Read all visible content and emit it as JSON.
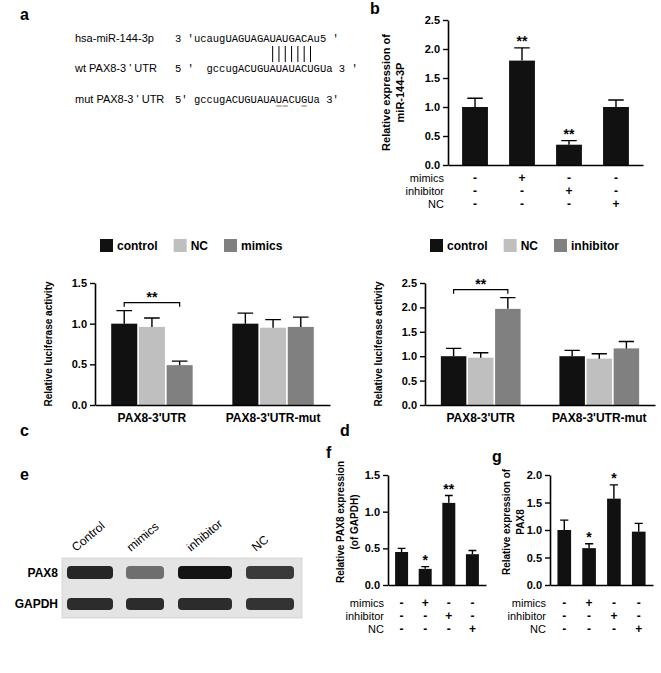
{
  "alignment": {
    "panel": "a",
    "rows": [
      {
        "name": "hsa-miR-144-3p",
        "sequence": "3 'ucaugUAGUAGAUAUGACAu5 '"
      },
      {
        "name": "wt PAX8-3 ' UTR",
        "sequence": "5 '  gccugACUGUAUAUACUGUa 3 '"
      },
      {
        "name": "mut PAX8-3 ' UTR",
        "sequence": "5' gccugACUGUAUAUACUGUa 3'"
      }
    ]
  },
  "blot": {
    "panel": "e",
    "lanes": [
      "Control",
      "mimics",
      "inhibitor",
      "NC"
    ],
    "rows": [
      "PAX8",
      "GAPDH"
    ]
  },
  "chart_data": [
    {
      "panel": "b",
      "type": "bar",
      "categories": [
        null,
        null,
        null,
        null
      ],
      "values": [
        1,
        1.8,
        0.35,
        1
      ],
      "errors": [
        0.15,
        0.22,
        0.07,
        0.12
      ],
      "color": "#111111",
      "ylabel": [
        "Relative expression of",
        "miR-144-3P"
      ],
      "ylim": [
        0,
        2.5
      ],
      "yticks": [
        {
          "value": 0,
          "label": "0.0"
        },
        0.5,
        {
          "value": 1,
          "label": "1.0"
        },
        1.5,
        {
          "value": 2,
          "label": "2.0"
        },
        2.5
      ],
      "annotations": [
        {
          "index": 1,
          "text": "**"
        },
        {
          "index": 2,
          "text": "**"
        }
      ],
      "conditions": [
        {
          "name": "mimics",
          "signs": [
            "-",
            "+",
            "-",
            "-"
          ]
        },
        {
          "name": "inhibitor",
          "signs": [
            "-",
            "-",
            "+",
            "-"
          ]
        },
        {
          "name": "NC",
          "signs": [
            "-",
            "-",
            "-",
            "+"
          ]
        }
      ]
    },
    {
      "panel": "c",
      "type": "bar",
      "categories": [
        "PAX8-3'UTR",
        "PAX8-3'UTR-mut"
      ],
      "series": [
        {
          "name": "control",
          "color": "#111111",
          "values": [
            1,
            1
          ],
          "errors": [
            0.16,
            0.13
          ]
        },
        {
          "name": "NC",
          "color": "#bfbfbf",
          "values": [
            0.96,
            0.95
          ],
          "errors": [
            0.11,
            0.1
          ]
        },
        {
          "name": "mimics",
          "color": "#808080",
          "values": [
            0.49,
            0.96
          ],
          "errors": [
            0.05,
            0.12
          ]
        }
      ],
      "ylabel": [
        "Relative luciferase activity"
      ],
      "ylim": [
        0,
        1.5
      ],
      "yticks": [
        {
          "value": 0,
          "label": "0.0"
        },
        0.5,
        {
          "value": 1,
          "label": "1.0"
        },
        1.5
      ],
      "legend": "top",
      "annotations": [
        {
          "index": 0,
          "series": [
            0,
            2
          ],
          "text": "**"
        }
      ]
    },
    {
      "panel": "d",
      "type": "bar",
      "categories": [
        "PAX8-3'UTR",
        "PAX8-3'UTR-mut"
      ],
      "series": [
        {
          "name": "control",
          "color": "#111111",
          "values": [
            1,
            1
          ],
          "errors": [
            0.16,
            0.12
          ]
        },
        {
          "name": "NC",
          "color": "#bfbfbf",
          "values": [
            0.97,
            0.95
          ],
          "errors": [
            0.1,
            0.1
          ]
        },
        {
          "name": "inhibitor",
          "color": "#808080",
          "values": [
            1.97,
            1.16
          ],
          "errors": [
            0.23,
            0.14
          ]
        }
      ],
      "ylabel": [
        "Relative luciferase activity"
      ],
      "ylim": [
        0,
        2.5
      ],
      "yticks": [
        {
          "value": 0,
          "label": "0.0"
        },
        0.5,
        {
          "value": 1,
          "label": "1.0"
        },
        1.5,
        {
          "value": 2,
          "label": "2.0"
        },
        2.5
      ],
      "legend": "top",
      "annotations": [
        {
          "index": 0,
          "series": [
            0,
            2
          ],
          "text": "**"
        }
      ]
    },
    {
      "panel": "f",
      "type": "bar",
      "categories": [
        null,
        null,
        null,
        null
      ],
      "values": [
        0.45,
        0.22,
        1.12,
        0.42
      ],
      "errors": [
        0.05,
        0.03,
        0.1,
        0.05
      ],
      "color": "#111111",
      "ylabel": [
        "Relative PAX8 expression",
        "(of GAPDH)"
      ],
      "ylim": [
        0,
        1.5
      ],
      "yticks": [
        {
          "value": 0,
          "label": "0.0"
        },
        0.5,
        {
          "value": 1,
          "label": "1.0"
        },
        1.5
      ],
      "annotations": [
        {
          "index": 1,
          "text": "*"
        },
        {
          "index": 2,
          "text": "**"
        }
      ],
      "conditions": [
        {
          "name": "mimics",
          "signs": [
            "-",
            "+",
            "-",
            "-"
          ]
        },
        {
          "name": "inhibitor",
          "signs": [
            "-",
            "-",
            "+",
            "-"
          ]
        },
        {
          "name": "NC",
          "signs": [
            "-",
            "-",
            "-",
            "+"
          ]
        }
      ]
    },
    {
      "panel": "g",
      "type": "bar",
      "categories": [
        null,
        null,
        null,
        null
      ],
      "values": [
        1,
        0.67,
        1.57,
        0.97
      ],
      "errors": [
        0.18,
        0.08,
        0.25,
        0.15
      ],
      "color": "#111111",
      "ylabel": [
        "Relative expression of",
        "PAX8"
      ],
      "ylim": [
        0,
        2
      ],
      "yticks": [
        {
          "value": 0,
          "label": "0.0"
        },
        0.5,
        {
          "value": 1,
          "label": "1.0"
        },
        1.5,
        {
          "value": 2,
          "label": "2.0"
        }
      ],
      "annotations": [
        {
          "index": 1,
          "text": "*"
        },
        {
          "index": 2,
          "text": "*"
        }
      ],
      "conditions": [
        {
          "name": "mimics",
          "signs": [
            "-",
            "+",
            "-",
            "-"
          ]
        },
        {
          "name": "inhibitor",
          "signs": [
            "-",
            "-",
            "+",
            "-"
          ]
        },
        {
          "name": "NC",
          "signs": [
            "-",
            "-",
            "-",
            "+"
          ]
        }
      ]
    }
  ]
}
